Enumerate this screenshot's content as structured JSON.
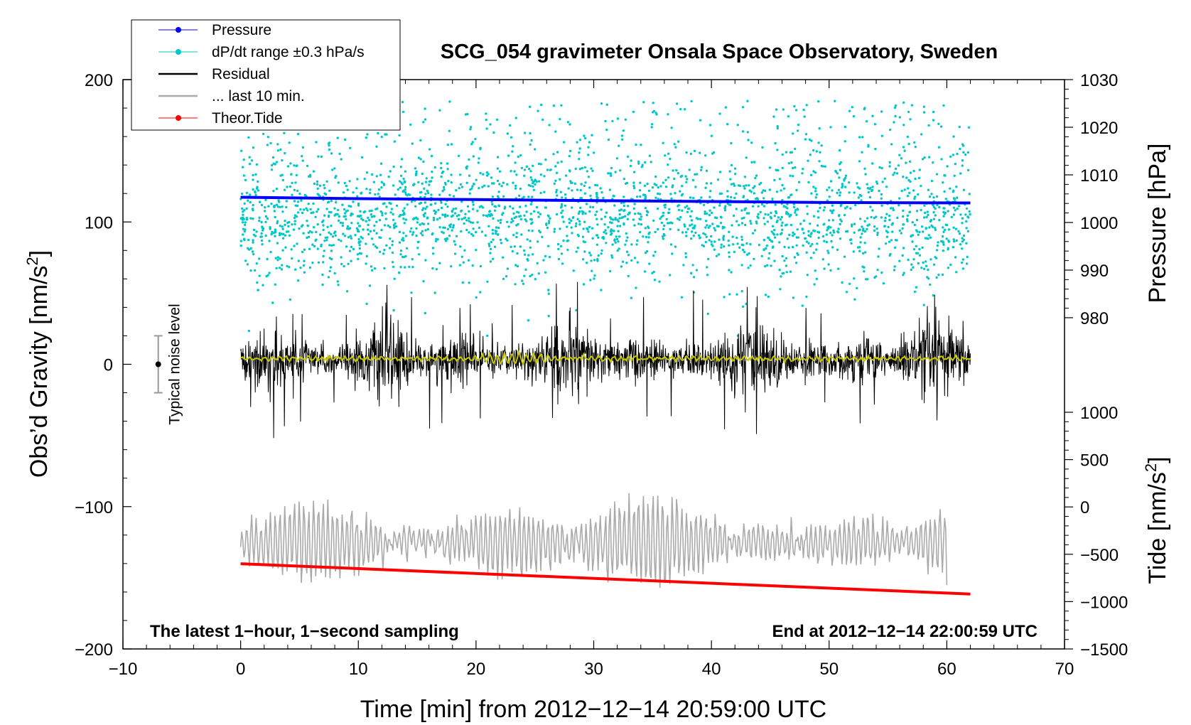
{
  "chart_data": {
    "type": "line",
    "title": "SCG_054 gravimeter Onsala Space Observatory, Sweden",
    "xlabel": "Time [min] from 2012−12−14 20:59:00 UTC",
    "ylabel_left": "Obs’d Gravity [nm/s²]",
    "ylabel_left_main": "Obs’d Gravity [nm/s",
    "ylabel_left_sup": "2",
    "ylabel_left_end": "]",
    "ylabel_right_pressure": "Pressure [hPa]",
    "ylabel_right_tide_main": "Tide [nm/s",
    "ylabel_right_tide_sup": "2",
    "ylabel_right_tide_end": "]",
    "xlim": [
      -10,
      70
    ],
    "ylim_left": [
      -200,
      200
    ],
    "pressure_range": [
      980,
      1030
    ],
    "tide_range": [
      -1500,
      1000
    ],
    "x_ticks": [
      "−10",
      "0",
      "10",
      "20",
      "30",
      "40",
      "50",
      "60",
      "70"
    ],
    "x_tick_values": [
      -10,
      0,
      10,
      20,
      30,
      40,
      50,
      60,
      70
    ],
    "y_left_ticks": [
      "−200",
      "−100",
      "0",
      "100",
      "200"
    ],
    "y_left_tick_values": [
      -200,
      -100,
      0,
      100,
      200
    ],
    "pressure_ticks": [
      "980",
      "990",
      "1000",
      "1010",
      "1020",
      "1030"
    ],
    "pressure_tick_values": [
      980,
      990,
      1000,
      1010,
      1020,
      1030
    ],
    "tide_ticks": [
      "−1500",
      "−1000",
      "−500",
      "0",
      "500",
      "1000"
    ],
    "tide_tick_values": [
      -1500,
      -1000,
      -500,
      0,
      500,
      1000
    ],
    "annotation_left": "The latest 1−hour, 1−second sampling",
    "annotation_right": "End at 2012−12−14 22:00:59 UTC",
    "noise_label": "Typical noise level",
    "noise_level": {
      "center": 0,
      "half_range": 20,
      "x": -7
    },
    "legend": [
      {
        "label": "Pressure",
        "color": "#0000ff",
        "marker": true
      },
      {
        "label": "dP/dt range ±0.3 hPa/s",
        "color": "#00c8c8",
        "marker": true
      },
      {
        "label": "Residual",
        "color": "#000000",
        "marker": false
      },
      {
        "label": "... last 10 min.",
        "color": "#aaaaaa",
        "marker": false
      },
      {
        "label": "Theor.Tide",
        "color": "#ff0000",
        "marker": true
      }
    ],
    "series": [
      {
        "name": "Pressure",
        "axis": "pressure",
        "x": [
          0,
          10,
          20,
          30,
          40,
          50,
          62
        ],
        "values": [
          1005.3,
          1005.0,
          1004.8,
          1004.6,
          1004.4,
          1004.2,
          1004.1
        ],
        "color": "#0000ff"
      },
      {
        "name": "Theor.Tide",
        "axis": "tide",
        "x": [
          0,
          62
        ],
        "values": [
          -600,
          -920
        ],
        "color": "#ff0000"
      },
      {
        "name": "Residual",
        "axis": "left",
        "x_range": [
          0,
          62
        ],
        "mean": 3,
        "typical_amplitude": 25,
        "max_excursion": 55,
        "color": "#000000"
      },
      {
        "name": "... last 10 min.",
        "axis": "left",
        "x_range": [
          0,
          60
        ],
        "mean": -125,
        "typical_amplitude": 25,
        "max_excursion": 48,
        "color": "#aaaaaa"
      },
      {
        "name": "dP/dt range ±0.3 hPa/s",
        "axis": "left",
        "x_range": [
          0,
          62
        ],
        "center": 100,
        "spread": [
          20,
          200
        ],
        "color": "#00c8c8"
      },
      {
        "name": "Smoothed residual",
        "axis": "left",
        "x_range": [
          0,
          62
        ],
        "mean": 4,
        "color": "#c8c800"
      }
    ],
    "colors": {
      "pressure": "#0000ff",
      "dpdt": "#00c8c8",
      "residual": "#000000",
      "last10": "#aaaaaa",
      "tide": "#ff0000",
      "smoothed": "#c8c800"
    }
  }
}
